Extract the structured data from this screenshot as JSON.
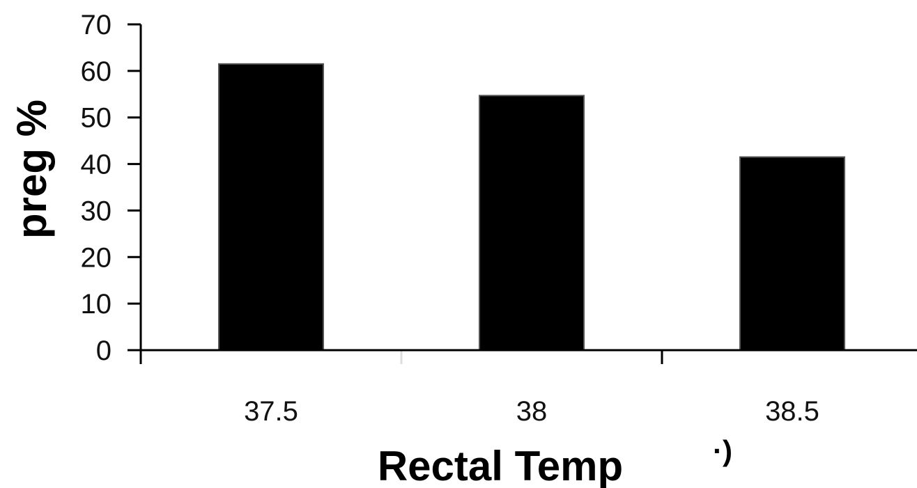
{
  "chart_data": {
    "type": "bar",
    "categories": [
      "37.5",
      "38",
      "38.5"
    ],
    "values": [
      61.5,
      54.7,
      41.5
    ],
    "xlabel": "Rectal Temp",
    "ylabel": "preg %",
    "ylim": [
      0,
      70
    ],
    "yticks": [
      0,
      10,
      20,
      30,
      40,
      50,
      60,
      70
    ],
    "grid": false,
    "legend": "none",
    "bar_color": "#000000",
    "stray_text": "·)"
  }
}
